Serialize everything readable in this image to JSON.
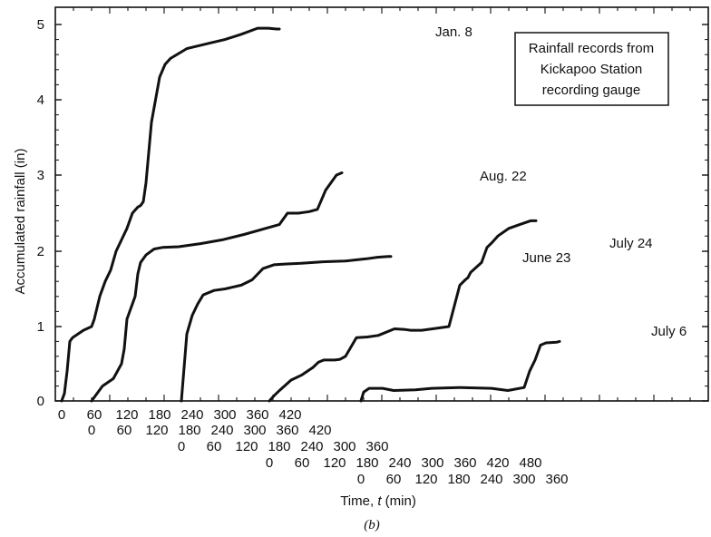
{
  "chart_data": {
    "type": "line",
    "title": "",
    "ylabel": "Accumulated rainfall (in)",
    "xlabel_prefix": "Time, ",
    "xlabel_var": "t",
    "xlabel_unit": " (min)",
    "caption": "(b)",
    "legend_lines": [
      "Rainfall records from",
      "Kickapoo Station",
      "recording gauge"
    ],
    "ylim": [
      0,
      5
    ],
    "yticks": [
      "0",
      "1",
      "2",
      "3",
      "4",
      "5"
    ],
    "grid": false,
    "x_rows": [
      {
        "series": "Jan. 8",
        "ticks": [
          "0",
          "60",
          "120",
          "180",
          "240",
          "300",
          "360",
          "420"
        ]
      },
      {
        "series": "Aug. 22",
        "ticks": [
          "0",
          "60",
          "120",
          "180",
          "240",
          "300",
          "360",
          "420"
        ]
      },
      {
        "series": "June 23",
        "ticks": [
          "0",
          "60",
          "120",
          "180",
          "240",
          "300",
          "360"
        ]
      },
      {
        "series": "July 24",
        "ticks": [
          "0",
          "60",
          "120",
          "180",
          "240",
          "300",
          "360",
          "420",
          "480"
        ]
      },
      {
        "series": "July 6",
        "ticks": [
          "0",
          "60",
          "120",
          "180",
          "240",
          "300",
          "360"
        ]
      }
    ],
    "series": [
      {
        "name": "Jan. 8",
        "x": [
          0,
          5,
          10,
          15,
          20,
          40,
          55,
          60,
          70,
          80,
          90,
          100,
          110,
          120,
          130,
          140,
          145,
          150,
          155,
          160,
          165,
          170,
          180,
          190,
          200,
          230,
          270,
          300,
          330,
          360,
          380,
          395,
          400
        ],
        "y": [
          0,
          0.1,
          0.4,
          0.8,
          0.85,
          0.95,
          1.0,
          1.1,
          1.4,
          1.6,
          1.75,
          2.0,
          2.15,
          2.3,
          2.5,
          2.58,
          2.6,
          2.65,
          2.9,
          3.3,
          3.7,
          3.9,
          4.3,
          4.47,
          4.55,
          4.68,
          4.75,
          4.8,
          4.87,
          4.95,
          4.95,
          4.94,
          4.94
        ]
      },
      {
        "name": "Aug. 22",
        "x": [
          0,
          20,
          30,
          40,
          55,
          60,
          65,
          70,
          75,
          80,
          85,
          90,
          100,
          115,
          130,
          160,
          200,
          240,
          280,
          330,
          345,
          350,
          360,
          380,
          400,
          415,
          430,
          450,
          460
        ],
        "y": [
          0,
          0.2,
          0.25,
          0.3,
          0.5,
          0.7,
          1.1,
          1.2,
          1.3,
          1.4,
          1.7,
          1.85,
          1.95,
          2.03,
          2.05,
          2.06,
          2.1,
          2.15,
          2.22,
          2.32,
          2.35,
          2.4,
          2.5,
          2.5,
          2.52,
          2.55,
          2.8,
          3.0,
          3.03
        ]
      },
      {
        "name": "June 23",
        "x": [
          0,
          5,
          10,
          20,
          30,
          40,
          60,
          80,
          110,
          130,
          150,
          170,
          190,
          220,
          260,
          300,
          340,
          360,
          380,
          385
        ],
        "y": [
          0,
          0.45,
          0.9,
          1.15,
          1.3,
          1.42,
          1.48,
          1.5,
          1.55,
          1.62,
          1.77,
          1.82,
          1.83,
          1.84,
          1.86,
          1.87,
          1.9,
          1.92,
          1.93,
          1.93
        ]
      },
      {
        "name": "July 24",
        "x": [
          0,
          10,
          20,
          40,
          60,
          80,
          90,
          100,
          120,
          130,
          140,
          160,
          180,
          200,
          230,
          250,
          260,
          280,
          300,
          330,
          350,
          360,
          365,
          370,
          390,
          400,
          410,
          420,
          430,
          440,
          460,
          480,
          490
        ],
        "y": [
          0,
          0.08,
          0.15,
          0.28,
          0.35,
          0.45,
          0.52,
          0.55,
          0.55,
          0.56,
          0.6,
          0.85,
          0.86,
          0.88,
          0.97,
          0.96,
          0.95,
          0.95,
          0.97,
          1.0,
          1.55,
          1.62,
          1.65,
          1.72,
          1.85,
          2.05,
          2.12,
          2.2,
          2.25,
          2.3,
          2.35,
          2.4,
          2.4
        ]
      },
      {
        "name": "July 6",
        "x": [
          0,
          5,
          15,
          40,
          60,
          100,
          130,
          180,
          240,
          270,
          300,
          310,
          320,
          330,
          340,
          360,
          365
        ],
        "y": [
          0,
          0.12,
          0.17,
          0.17,
          0.14,
          0.15,
          0.17,
          0.18,
          0.17,
          0.14,
          0.18,
          0.4,
          0.55,
          0.75,
          0.78,
          0.79,
          0.8
        ]
      }
    ]
  }
}
